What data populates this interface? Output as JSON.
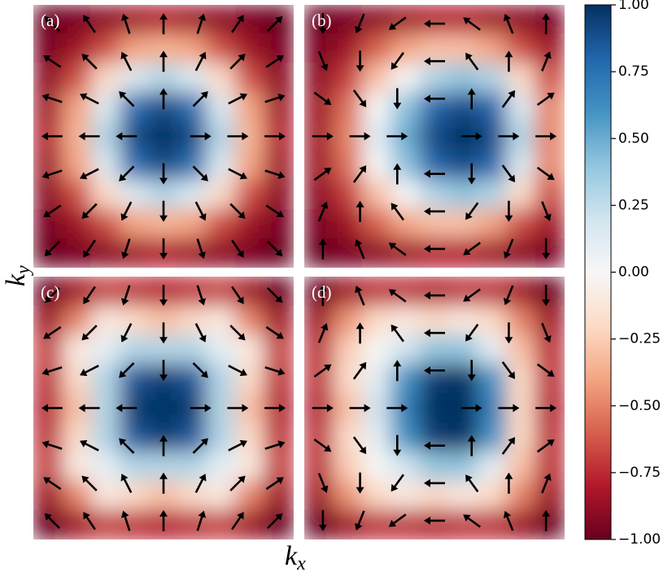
{
  "chart_data": {
    "type": "heatmap",
    "xlabel": "k_x",
    "ylabel": "k_y",
    "colormap": [
      "#67001f",
      "#b2182b",
      "#d6604d",
      "#f4a582",
      "#fddbc7",
      "#f7f7f7",
      "#d1e5f0",
      "#92c5de",
      "#4393c3",
      "#2166ac",
      "#053061"
    ],
    "zlim": [
      -1,
      1
    ],
    "zticks": [
      {
        "value": 1,
        "label": "1.00"
      },
      {
        "value": 0.75,
        "label": "0.75"
      },
      {
        "value": 0.5,
        "label": "0.50"
      },
      {
        "value": 0.25,
        "label": "0.25"
      },
      {
        "value": 0,
        "label": "0.00"
      },
      {
        "value": -0.25,
        "label": "−0.25"
      },
      {
        "value": -0.5,
        "label": "−0.50"
      },
      {
        "value": -0.75,
        "label": "−0.75"
      },
      {
        "value": -1,
        "label": "−1.00"
      }
    ],
    "panels": [
      {
        "label": "(a)",
        "z": [
          [
            -1,
            -0.95,
            -0.9,
            -0.85,
            -0.8,
            -0.85,
            -0.9,
            -0.95,
            -1
          ],
          [
            -0.95,
            -0.85,
            -0.65,
            -0.4,
            -0.35,
            -0.4,
            -0.65,
            -0.85,
            -0.95
          ],
          [
            -0.9,
            -0.65,
            -0.2,
            0.15,
            0.3,
            0.15,
            -0.2,
            -0.65,
            -0.9
          ],
          [
            -0.85,
            -0.4,
            0.15,
            0.75,
            0.9,
            0.75,
            0.15,
            -0.4,
            -0.85
          ],
          [
            -0.8,
            -0.35,
            0.3,
            0.9,
            1,
            0.9,
            0.3,
            -0.35,
            -0.8
          ],
          [
            -0.85,
            -0.4,
            0.15,
            0.75,
            0.9,
            0.75,
            0.15,
            -0.4,
            -0.85
          ],
          [
            -0.9,
            -0.65,
            -0.2,
            0.15,
            0.3,
            0.15,
            -0.2,
            -0.65,
            -0.9
          ],
          [
            -0.95,
            -0.85,
            -0.65,
            -0.4,
            -0.35,
            -0.4,
            -0.65,
            -0.85,
            -0.95
          ],
          [
            -1,
            -0.95,
            -0.9,
            -0.85,
            -0.8,
            -0.85,
            -0.9,
            -0.95,
            -1
          ]
        ],
        "angles": [
          [
            135,
            124,
            108,
            90,
            72,
            56,
            45
          ],
          [
            146,
            135,
            117,
            90,
            63,
            45,
            34
          ],
          [
            162,
            153,
            135,
            90,
            45,
            27,
            18
          ],
          [
            180,
            180,
            180,
            null,
            0,
            0,
            0
          ],
          [
            -162,
            -153,
            -135,
            -90,
            -45,
            -27,
            -18
          ],
          [
            -146,
            -135,
            -117,
            -90,
            -63,
            -45,
            -34
          ],
          [
            -135,
            -124,
            -108,
            -90,
            -72,
            -56,
            -45
          ]
        ]
      },
      {
        "label": "(b)",
        "z": [
          [
            -1,
            -0.95,
            -0.9,
            -0.85,
            -0.8,
            -0.8,
            -0.85,
            -0.9,
            -0.95
          ],
          [
            -0.95,
            -0.85,
            -0.6,
            -0.4,
            -0.3,
            -0.3,
            -0.4,
            -0.65,
            -0.85
          ],
          [
            -0.9,
            -0.7,
            -0.3,
            0,
            0.3,
            0.4,
            0.3,
            -0.2,
            -0.65
          ],
          [
            -0.85,
            -0.55,
            0,
            0.4,
            0.8,
            0.9,
            0.8,
            0.15,
            -0.5
          ],
          [
            -0.85,
            -0.5,
            0.1,
            0.5,
            0.9,
            1,
            0.9,
            0.3,
            -0.5
          ],
          [
            -0.85,
            -0.55,
            0,
            0.4,
            0.8,
            0.9,
            0.8,
            0.15,
            -0.5
          ],
          [
            -0.9,
            -0.7,
            -0.3,
            0,
            0.3,
            0.4,
            0.3,
            -0.2,
            -0.65
          ],
          [
            -0.95,
            -0.85,
            -0.6,
            -0.4,
            -0.3,
            -0.3,
            -0.4,
            -0.65,
            -0.85
          ],
          [
            -1,
            -0.95,
            -0.9,
            -0.85,
            -0.8,
            -0.8,
            -0.85,
            -0.9,
            -0.95
          ]
        ],
        "angles": [
          [
            -90,
            -112,
            -144,
            180,
            144,
            112,
            90
          ],
          [
            -68,
            -90,
            -126,
            180,
            126,
            90,
            68
          ],
          [
            -36,
            -54,
            -90,
            180,
            90,
            54,
            36
          ],
          [
            0,
            0,
            0,
            null,
            0,
            0,
            0
          ],
          [
            36,
            54,
            90,
            180,
            -90,
            -54,
            -36
          ],
          [
            68,
            90,
            126,
            180,
            -126,
            -90,
            -68
          ],
          [
            90,
            112,
            144,
            180,
            -144,
            -112,
            -90
          ]
        ]
      },
      {
        "label": "(c)",
        "z": [
          [
            -1,
            -0.85,
            -0.7,
            -0.75,
            -0.8,
            -0.75,
            -0.7,
            -0.85,
            -1
          ],
          [
            -0.85,
            -0.5,
            -0.1,
            -0.2,
            -0.3,
            -0.2,
            -0.1,
            -0.5,
            -0.85
          ],
          [
            -0.7,
            -0.1,
            0.1,
            0.3,
            0.3,
            0.3,
            0.1,
            -0.1,
            -0.7
          ],
          [
            -0.75,
            -0.2,
            0.3,
            0.85,
            0.95,
            0.85,
            0.3,
            -0.2,
            -0.75
          ],
          [
            -0.8,
            -0.3,
            0.3,
            0.95,
            1,
            0.95,
            0.3,
            -0.3,
            -0.8
          ],
          [
            -0.75,
            -0.2,
            0.3,
            0.85,
            0.95,
            0.85,
            0.3,
            -0.2,
            -0.75
          ],
          [
            -0.7,
            -0.1,
            0.1,
            0.3,
            0.3,
            0.3,
            0.1,
            -0.1,
            -0.7
          ],
          [
            -0.85,
            -0.5,
            -0.1,
            -0.2,
            -0.3,
            -0.2,
            -0.1,
            -0.5,
            -0.85
          ],
          [
            -1,
            -0.85,
            -0.7,
            -0.75,
            -0.8,
            -0.75,
            -0.7,
            -0.85,
            -1
          ]
        ],
        "angles": [
          [
            -135,
            -124,
            -108,
            -90,
            -72,
            -56,
            -45
          ],
          [
            -146,
            -135,
            -117,
            -90,
            -63,
            -45,
            -34
          ],
          [
            -162,
            -153,
            -135,
            -90,
            -45,
            -27,
            -18
          ],
          [
            180,
            180,
            180,
            null,
            0,
            0,
            0
          ],
          [
            162,
            153,
            135,
            90,
            45,
            27,
            18
          ],
          [
            146,
            135,
            117,
            90,
            63,
            45,
            34
          ],
          [
            135,
            124,
            108,
            90,
            72,
            56,
            45
          ]
        ]
      },
      {
        "label": "(d)",
        "z": [
          [
            -1,
            -0.85,
            -0.75,
            -0.75,
            -0.8,
            -0.75,
            -0.75,
            -0.85,
            -1
          ],
          [
            -0.85,
            -0.45,
            -0.2,
            -0.1,
            -0.2,
            -0.1,
            -0.2,
            -0.5,
            -0.85
          ],
          [
            -0.75,
            -0.25,
            0,
            0.2,
            0.4,
            0.4,
            0.1,
            -0.3,
            -0.75
          ],
          [
            -0.75,
            -0.2,
            0.1,
            0.6,
            0.95,
            1,
            0.6,
            -0.2,
            -0.75
          ],
          [
            -0.8,
            -0.3,
            0.2,
            0.7,
            1,
            1,
            0.7,
            -0.2,
            -0.8
          ],
          [
            -0.75,
            -0.2,
            0.1,
            0.6,
            0.95,
            1,
            0.6,
            -0.2,
            -0.75
          ],
          [
            -0.75,
            -0.25,
            0,
            0.2,
            0.4,
            0.4,
            0.1,
            -0.3,
            -0.75
          ],
          [
            -0.85,
            -0.45,
            -0.2,
            -0.1,
            -0.2,
            -0.1,
            -0.2,
            -0.5,
            -0.85
          ],
          [
            -1,
            -0.85,
            -0.75,
            -0.75,
            -0.8,
            -0.75,
            -0.75,
            -0.85,
            -1
          ]
        ],
        "angles": [
          [
            90,
            112,
            144,
            180,
            -144,
            -112,
            -90
          ],
          [
            68,
            90,
            126,
            180,
            -126,
            -90,
            -68
          ],
          [
            36,
            54,
            90,
            180,
            -90,
            -54,
            -36
          ],
          [
            0,
            0,
            0,
            null,
            0,
            0,
            0
          ],
          [
            -36,
            -54,
            -90,
            180,
            90,
            54,
            36
          ],
          [
            -68,
            -90,
            -126,
            180,
            126,
            90,
            68
          ],
          [
            -90,
            -112,
            -144,
            180,
            144,
            112,
            90
          ]
        ]
      }
    ]
  }
}
